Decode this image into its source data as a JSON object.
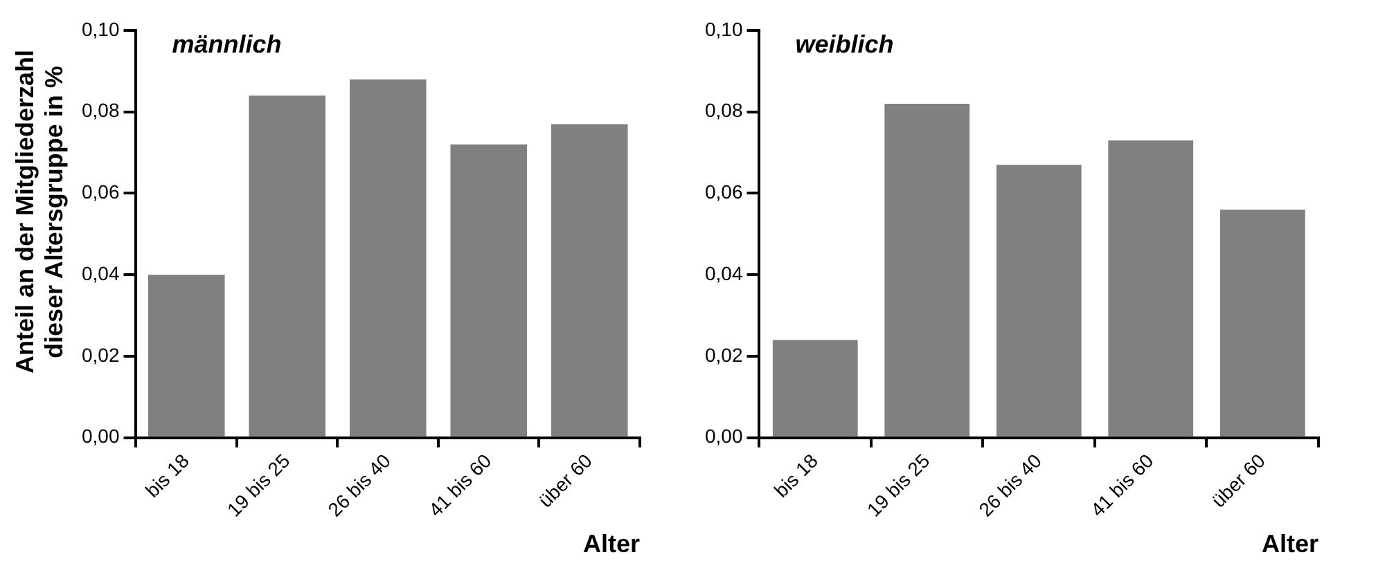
{
  "chart_data": [
    {
      "type": "bar",
      "title": "männlich",
      "ylabel": "Anteil an der Mitgliederzahl dieser Altersgruppe in %",
      "xlabel": "Alter",
      "categories": [
        "bis 18",
        "19 bis 25",
        "26 bis 40",
        "41 bis 60",
        "über 60"
      ],
      "values": [
        0.04,
        0.084,
        0.088,
        0.072,
        0.077
      ],
      "color": "#808080",
      "ylim": [
        0,
        0.1
      ],
      "yticks": [
        {
          "value": 0,
          "label": "0,00"
        },
        {
          "value": 0.02,
          "label": "0,02"
        },
        {
          "value": 0.04,
          "label": "0,04"
        },
        {
          "value": 0.06,
          "label": "0,06"
        },
        {
          "value": 0.08,
          "label": "0,08"
        },
        {
          "value": 0.1,
          "label": "0,10"
        }
      ],
      "grid": false,
      "legend": false
    },
    {
      "type": "bar",
      "title": "weiblich",
      "xlabel": "Alter",
      "categories": [
        "bis 18",
        "19 bis 25",
        "26 bis 40",
        "41 bis 60",
        "über 60"
      ],
      "values": [
        0.024,
        0.082,
        0.067,
        0.073,
        0.056
      ],
      "color": "#808080",
      "ylim": [
        0,
        0.1
      ],
      "yticks": [
        {
          "value": 0,
          "label": "0,00"
        },
        {
          "value": 0.02,
          "label": "0,02"
        },
        {
          "value": 0.04,
          "label": "0,04"
        },
        {
          "value": 0.06,
          "label": "0,06"
        },
        {
          "value": 0.08,
          "label": "0,08"
        },
        {
          "value": 0.1,
          "label": "0,10"
        }
      ],
      "grid": false,
      "legend": false
    }
  ]
}
